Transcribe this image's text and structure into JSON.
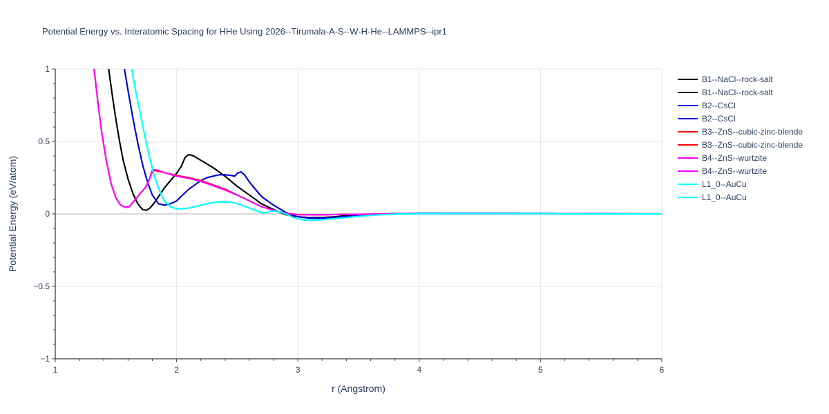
{
  "chart_data": {
    "type": "line",
    "title": "Potential Energy vs. Interatomic Spacing for HHe Using 2026--Tirumala-A-S--W-H-He--LAMMPS--ipr1",
    "xlabel": "r (Angstrom)",
    "ylabel": "Potential Energy (eV/atom)",
    "xlim": [
      1,
      6
    ],
    "ylim": [
      -1,
      1
    ],
    "x_ticks": [
      1,
      2,
      3,
      4,
      5,
      6
    ],
    "x_tick_labels": [
      "1",
      "2",
      "3",
      "4",
      "5",
      "6"
    ],
    "y_ticks": [
      -1,
      -0.5,
      0,
      0.5,
      1
    ],
    "y_tick_labels": [
      "−1",
      "−0.5",
      "0",
      "0.5",
      "1"
    ],
    "grid": true,
    "legend_position": "right",
    "series": [
      {
        "name": "B1--NaCl--rock-salt",
        "color": "#000000",
        "x": [
          1.44,
          1.47,
          1.5,
          1.53,
          1.56,
          1.6,
          1.64,
          1.68,
          1.72,
          1.75,
          1.78,
          1.82,
          1.86,
          1.9,
          1.95,
          2.0,
          2.04,
          2.07,
          2.1,
          2.14,
          2.2,
          2.3,
          2.4,
          2.5,
          2.6,
          2.7,
          2.8,
          2.9,
          3.0,
          3.1,
          3.2,
          3.3,
          3.4,
          3.5,
          3.6,
          3.8,
          4.0,
          4.5,
          5.0,
          5.5,
          6.0
        ],
        "y": [
          1.0,
          0.82,
          0.65,
          0.5,
          0.37,
          0.24,
          0.14,
          0.07,
          0.03,
          0.025,
          0.04,
          0.08,
          0.13,
          0.18,
          0.23,
          0.28,
          0.33,
          0.39,
          0.41,
          0.4,
          0.37,
          0.32,
          0.26,
          0.19,
          0.13,
          0.07,
          0.03,
          -0.005,
          -0.02,
          -0.025,
          -0.025,
          -0.02,
          -0.012,
          -0.006,
          -0.002,
          0.002,
          0.004,
          0.004,
          0.003,
          0.001,
          0.0
        ]
      },
      {
        "name": "B1--NaCl--rock-salt",
        "color": "#000000",
        "x": [
          1.44,
          1.47,
          1.5,
          1.53,
          1.56,
          1.6,
          1.64,
          1.68,
          1.72,
          1.75,
          1.78,
          1.82,
          1.86,
          1.9,
          1.95,
          2.0,
          2.04,
          2.07,
          2.1,
          2.14,
          2.2,
          2.3,
          2.4,
          2.5,
          2.6,
          2.7,
          2.8,
          2.9,
          3.0,
          3.1,
          3.2,
          3.3,
          3.4,
          3.5,
          3.6,
          3.8,
          4.0,
          4.5,
          5.0,
          5.5,
          6.0
        ],
        "y": [
          1.0,
          0.82,
          0.65,
          0.5,
          0.37,
          0.24,
          0.14,
          0.07,
          0.03,
          0.025,
          0.04,
          0.08,
          0.13,
          0.18,
          0.23,
          0.28,
          0.33,
          0.39,
          0.41,
          0.4,
          0.37,
          0.32,
          0.26,
          0.19,
          0.13,
          0.07,
          0.03,
          -0.005,
          -0.02,
          -0.025,
          -0.025,
          -0.02,
          -0.012,
          -0.006,
          -0.002,
          0.002,
          0.004,
          0.004,
          0.003,
          0.001,
          0.0
        ]
      },
      {
        "name": "B2--CsCl",
        "color": "#0000dd",
        "x": [
          1.57,
          1.6,
          1.64,
          1.68,
          1.72,
          1.76,
          1.8,
          1.85,
          1.9,
          1.95,
          2.0,
          2.05,
          2.1,
          2.15,
          2.2,
          2.25,
          2.3,
          2.35,
          2.4,
          2.45,
          2.48,
          2.5,
          2.53,
          2.56,
          2.6,
          2.65,
          2.7,
          2.8,
          2.9,
          3.0,
          3.1,
          3.2,
          3.3,
          3.4,
          3.5,
          3.6,
          3.8,
          4.0,
          4.5,
          5.0,
          5.5,
          6.0
        ],
        "y": [
          1.0,
          0.85,
          0.66,
          0.49,
          0.34,
          0.22,
          0.13,
          0.07,
          0.06,
          0.07,
          0.09,
          0.13,
          0.17,
          0.2,
          0.23,
          0.25,
          0.26,
          0.27,
          0.27,
          0.265,
          0.26,
          0.28,
          0.29,
          0.27,
          0.22,
          0.17,
          0.12,
          0.06,
          0.01,
          -0.02,
          -0.03,
          -0.03,
          -0.025,
          -0.018,
          -0.01,
          -0.005,
          0.0,
          0.004,
          0.004,
          0.003,
          0.001,
          0.0
        ]
      },
      {
        "name": "B2--CsCl",
        "color": "#0000dd",
        "x": [
          1.57,
          1.6,
          1.64,
          1.68,
          1.72,
          1.76,
          1.8,
          1.85,
          1.9,
          1.95,
          2.0,
          2.05,
          2.1,
          2.15,
          2.2,
          2.25,
          2.3,
          2.35,
          2.4,
          2.45,
          2.48,
          2.5,
          2.53,
          2.56,
          2.6,
          2.65,
          2.7,
          2.8,
          2.9,
          3.0,
          3.1,
          3.2,
          3.3,
          3.4,
          3.5,
          3.6,
          3.8,
          4.0,
          4.5,
          5.0,
          5.5,
          6.0
        ],
        "y": [
          1.0,
          0.85,
          0.66,
          0.49,
          0.34,
          0.22,
          0.13,
          0.07,
          0.06,
          0.07,
          0.09,
          0.13,
          0.17,
          0.2,
          0.23,
          0.25,
          0.26,
          0.27,
          0.27,
          0.265,
          0.26,
          0.28,
          0.29,
          0.27,
          0.22,
          0.17,
          0.12,
          0.06,
          0.01,
          -0.02,
          -0.03,
          -0.03,
          -0.025,
          -0.018,
          -0.01,
          -0.005,
          0.0,
          0.004,
          0.004,
          0.003,
          0.001,
          0.0
        ]
      },
      {
        "name": "B3--ZnS--cubic-zinc-blende",
        "color": "#ff0000",
        "x": [
          1.32,
          1.35,
          1.38,
          1.42,
          1.46,
          1.5,
          1.54,
          1.58,
          1.61,
          1.65,
          1.7,
          1.75,
          1.78,
          1.8,
          1.82,
          1.85,
          1.9,
          2.0,
          2.1,
          2.2,
          2.3,
          2.4,
          2.5,
          2.6,
          2.7,
          2.8,
          2.9,
          3.0,
          3.2,
          3.4,
          3.6,
          3.8,
          4.0,
          4.5,
          5.0,
          5.5,
          6.0
        ],
        "y": [
          1.0,
          0.78,
          0.58,
          0.37,
          0.21,
          0.11,
          0.06,
          0.045,
          0.05,
          0.09,
          0.14,
          0.19,
          0.25,
          0.29,
          0.3,
          0.295,
          0.285,
          0.265,
          0.25,
          0.23,
          0.2,
          0.17,
          0.13,
          0.09,
          0.05,
          0.025,
          0.005,
          -0.005,
          -0.006,
          -0.004,
          -0.002,
          0.0,
          0.002,
          0.002,
          0.001,
          0.0,
          0.0
        ]
      },
      {
        "name": "B3--ZnS--cubic-zinc-blende",
        "color": "#ff0000",
        "x": [
          1.32,
          1.35,
          1.38,
          1.42,
          1.46,
          1.5,
          1.54,
          1.58,
          1.61,
          1.65,
          1.7,
          1.75,
          1.78,
          1.8,
          1.82,
          1.85,
          1.9,
          2.0,
          2.1,
          2.2,
          2.3,
          2.4,
          2.5,
          2.6,
          2.7,
          2.8,
          2.9,
          3.0,
          3.2,
          3.4,
          3.6,
          3.8,
          4.0,
          4.5,
          5.0,
          5.5,
          6.0
        ],
        "y": [
          1.0,
          0.78,
          0.58,
          0.37,
          0.21,
          0.11,
          0.06,
          0.045,
          0.05,
          0.09,
          0.14,
          0.19,
          0.25,
          0.29,
          0.3,
          0.295,
          0.285,
          0.265,
          0.25,
          0.23,
          0.2,
          0.17,
          0.13,
          0.09,
          0.05,
          0.025,
          0.005,
          -0.005,
          -0.006,
          -0.004,
          -0.002,
          0.0,
          0.002,
          0.002,
          0.001,
          0.0,
          0.0
        ]
      },
      {
        "name": "B4--ZnS--wurtzite",
        "color": "#ff00ff",
        "x": [
          1.32,
          1.35,
          1.38,
          1.42,
          1.46,
          1.5,
          1.54,
          1.58,
          1.61,
          1.65,
          1.7,
          1.75,
          1.78,
          1.8,
          1.82,
          1.85,
          1.9,
          2.0,
          2.1,
          2.2,
          2.3,
          2.4,
          2.5,
          2.6,
          2.7,
          2.8,
          2.9,
          3.0,
          3.2,
          3.4,
          3.6,
          3.8,
          4.0,
          4.5,
          5.0,
          5.5,
          6.0
        ],
        "y": [
          1.0,
          0.78,
          0.58,
          0.37,
          0.21,
          0.11,
          0.06,
          0.045,
          0.05,
          0.09,
          0.14,
          0.19,
          0.25,
          0.3,
          0.305,
          0.3,
          0.285,
          0.26,
          0.245,
          0.225,
          0.195,
          0.165,
          0.13,
          0.09,
          0.05,
          0.025,
          0.005,
          -0.005,
          -0.006,
          -0.004,
          -0.002,
          0.0,
          0.002,
          0.002,
          0.001,
          0.0,
          0.0
        ]
      },
      {
        "name": "B4--ZnS--wurtzite",
        "color": "#ff00ff",
        "x": [
          1.32,
          1.35,
          1.38,
          1.42,
          1.46,
          1.5,
          1.54,
          1.58,
          1.61,
          1.65,
          1.7,
          1.75,
          1.78,
          1.8,
          1.82,
          1.85,
          1.9,
          2.0,
          2.1,
          2.2,
          2.3,
          2.4,
          2.5,
          2.6,
          2.7,
          2.8,
          2.9,
          3.0,
          3.2,
          3.4,
          3.6,
          3.8,
          4.0,
          4.5,
          5.0,
          5.5,
          6.0
        ],
        "y": [
          1.0,
          0.78,
          0.58,
          0.37,
          0.21,
          0.11,
          0.06,
          0.045,
          0.05,
          0.09,
          0.14,
          0.19,
          0.25,
          0.3,
          0.305,
          0.3,
          0.285,
          0.26,
          0.245,
          0.225,
          0.195,
          0.165,
          0.13,
          0.09,
          0.05,
          0.025,
          0.005,
          -0.005,
          -0.006,
          -0.004,
          -0.002,
          0.0,
          0.002,
          0.002,
          0.001,
          0.0,
          0.0
        ]
      },
      {
        "name": "L1_0--AuCu",
        "color": "#00ffff",
        "x": [
          1.63,
          1.66,
          1.7,
          1.74,
          1.78,
          1.82,
          1.86,
          1.9,
          1.95,
          2.0,
          2.05,
          2.1,
          2.15,
          2.2,
          2.25,
          2.3,
          2.35,
          2.4,
          2.45,
          2.5,
          2.55,
          2.6,
          2.65,
          2.7,
          2.72,
          2.76,
          2.8,
          2.85,
          2.9,
          2.95,
          3.0,
          3.05,
          3.1,
          3.2,
          3.3,
          3.4,
          3.5,
          3.6,
          3.7,
          3.8,
          4.0,
          4.5,
          5.0,
          5.5,
          6.0
        ],
        "y": [
          1.0,
          0.86,
          0.7,
          0.53,
          0.38,
          0.25,
          0.16,
          0.09,
          0.05,
          0.035,
          0.035,
          0.04,
          0.05,
          0.06,
          0.07,
          0.078,
          0.082,
          0.083,
          0.08,
          0.07,
          0.056,
          0.04,
          0.025,
          0.01,
          0.005,
          0.015,
          0.02,
          0.015,
          0.0,
          -0.02,
          -0.035,
          -0.042,
          -0.045,
          -0.04,
          -0.033,
          -0.025,
          -0.017,
          -0.01,
          -0.005,
          -0.002,
          0.001,
          0.002,
          0.001,
          0.0,
          0.0
        ]
      },
      {
        "name": "L1_0--AuCu",
        "color": "#00ffff",
        "x": [
          1.63,
          1.66,
          1.7,
          1.74,
          1.78,
          1.82,
          1.86,
          1.9,
          1.95,
          2.0,
          2.05,
          2.1,
          2.15,
          2.2,
          2.25,
          2.3,
          2.35,
          2.4,
          2.45,
          2.5,
          2.55,
          2.6,
          2.65,
          2.7,
          2.72,
          2.76,
          2.8,
          2.85,
          2.9,
          2.95,
          3.0,
          3.05,
          3.1,
          3.2,
          3.3,
          3.4,
          3.5,
          3.6,
          3.7,
          3.8,
          4.0,
          4.5,
          5.0,
          5.5,
          6.0
        ],
        "y": [
          1.0,
          0.86,
          0.7,
          0.53,
          0.38,
          0.25,
          0.16,
          0.09,
          0.05,
          0.035,
          0.035,
          0.04,
          0.05,
          0.06,
          0.07,
          0.078,
          0.082,
          0.083,
          0.08,
          0.07,
          0.056,
          0.04,
          0.025,
          0.01,
          0.005,
          0.015,
          0.02,
          0.015,
          0.0,
          -0.02,
          -0.035,
          -0.042,
          -0.045,
          -0.04,
          -0.033,
          -0.025,
          -0.017,
          -0.01,
          -0.005,
          -0.002,
          0.001,
          0.002,
          0.001,
          0.0,
          0.0
        ]
      }
    ]
  }
}
